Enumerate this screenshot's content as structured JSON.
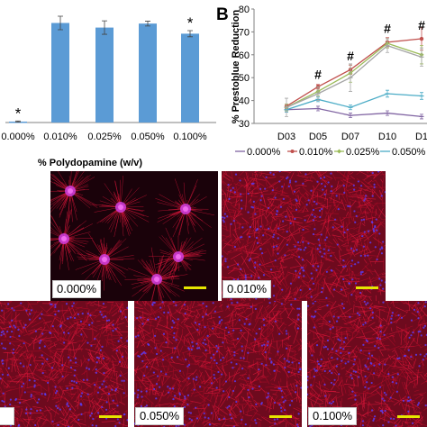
{
  "chart_data": [
    {
      "type": "bar",
      "panel_letter": "",
      "xlabel": "% Polydopamine (w/v)",
      "ylabel": "",
      "categories": [
        "0.000%",
        "0.010%",
        "0.025%",
        "0.050%",
        "0.100%"
      ],
      "values": [
        0.3,
        32.5,
        31.0,
        32.3,
        29.0
      ],
      "errors": [
        0.2,
        2.2,
        2.2,
        0.8,
        1.0
      ],
      "significance": [
        "*",
        "",
        "",
        "",
        "*"
      ],
      "ylim": [
        0,
        40
      ],
      "grid": false,
      "bar_color": "#5b9bd5"
    },
    {
      "type": "line",
      "panel_letter": "B",
      "ylabel": "% Prestoblue Reduction",
      "xlabel": "",
      "x": [
        "D03",
        "D05",
        "D07",
        "D10",
        "D1"
      ],
      "yticks": [
        30,
        40,
        50,
        60,
        70,
        80
      ],
      "ylim": [
        30,
        80
      ],
      "legend_position": "bottom",
      "annotations": [
        {
          "x": "D05",
          "y": 49.5,
          "text": "#"
        },
        {
          "x": "D07",
          "y": 57.5,
          "text": "#"
        },
        {
          "x": "D10",
          "y": 69.5,
          "text": "#"
        },
        {
          "x": "D1",
          "y": 71,
          "text": "#"
        }
      ],
      "series": [
        {
          "name": "0.000%",
          "color": "#8064a2",
          "values": [
            36,
            36.5,
            33.5,
            34.5,
            33
          ],
          "errors": [
            1,
            1,
            1,
            1,
            1
          ]
        },
        {
          "name": "0.010%",
          "color": "#c0504d",
          "values": [
            37.5,
            46,
            53.5,
            65.5,
            67
          ],
          "errors": [
            1,
            1,
            2,
            2,
            5
          ]
        },
        {
          "name": "0.025%",
          "color": "#9bbb59",
          "values": [
            37,
            44,
            52,
            65,
            60
          ],
          "errors": [
            1.5,
            2,
            4,
            2,
            4
          ]
        },
        {
          "name": "0.050%",
          "color": "#4bacc6",
          "values": [
            36,
            40.5,
            37,
            43,
            42
          ],
          "errors": [
            1,
            1,
            1,
            1.5,
            1.5
          ]
        },
        {
          "name": "",
          "color": "#a5a5a5",
          "values": [
            37,
            43,
            50,
            64,
            59
          ],
          "errors": [
            4,
            3,
            6,
            3,
            4
          ]
        }
      ]
    }
  ],
  "images": [
    {
      "label": "0.000%"
    },
    {
      "label": "0.010%"
    },
    {
      "label": ""
    },
    {
      "label": "0.050%"
    },
    {
      "label": "0.100%"
    }
  ],
  "colors": {
    "scale_bar": "#e6e600",
    "actin": "#d0102a",
    "nuclei": "#4a2ad8"
  }
}
